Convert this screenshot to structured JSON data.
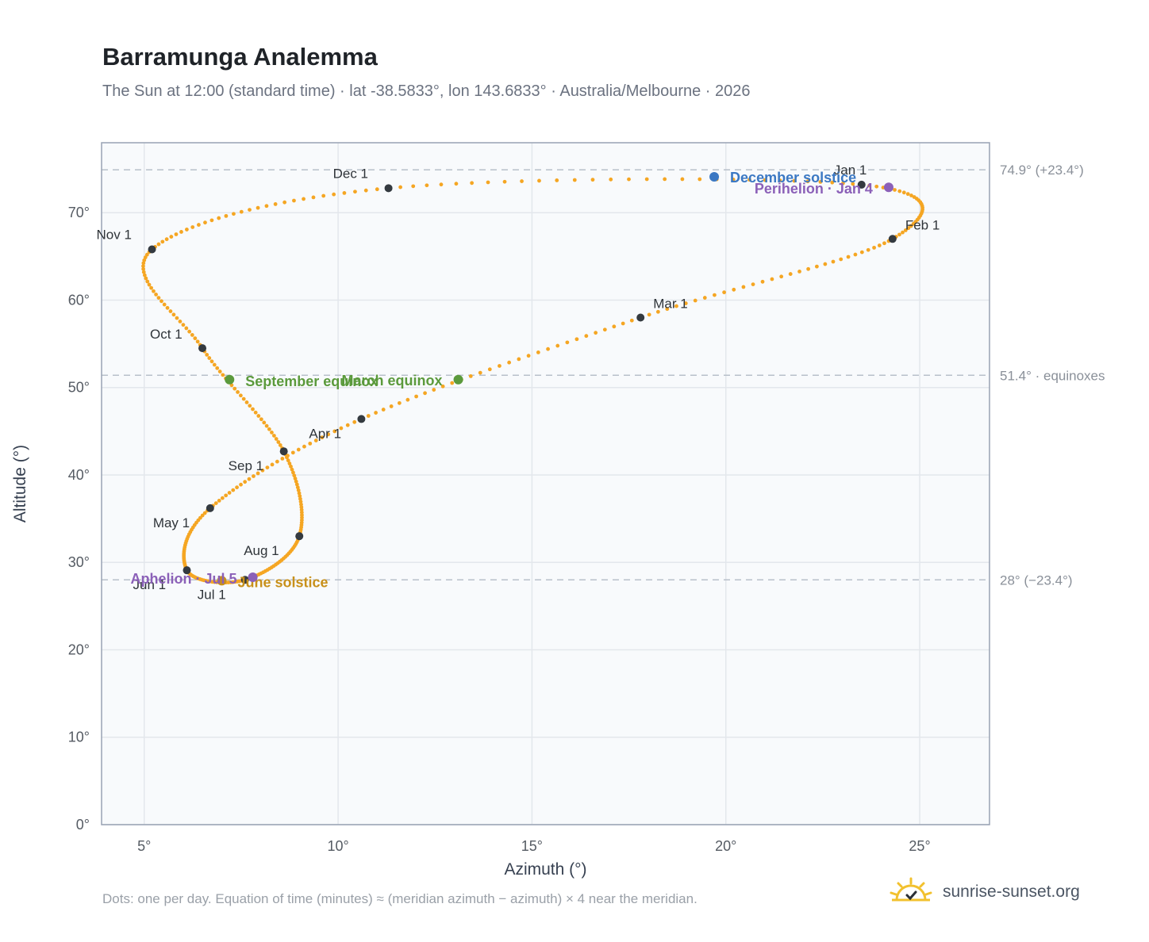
{
  "header": {
    "title": "Barramunga Analemma",
    "subtitle": "The Sun at 12:00 (standard time) · lat -38.5833°, lon 143.6833° · Australia/Melbourne · 2026"
  },
  "footer": {
    "note": "Dots: one per day. Equation of time (minutes) ≈ (meridian azimuth − azimuth) × 4 near the meridian.",
    "brand": "sunrise-sunset.org"
  },
  "chart_data": {
    "type": "scatter",
    "xlabel": "Azimuth (°)",
    "ylabel": "Altitude (°)",
    "xlim": [
      3.9,
      26.8
    ],
    "ylim": [
      0,
      78
    ],
    "xticks": [
      5,
      10,
      15,
      20,
      25
    ],
    "xtick_labels": [
      "5°",
      "10°",
      "15°",
      "20°",
      "25°"
    ],
    "yticks": [
      0,
      10,
      20,
      30,
      40,
      50,
      60,
      70
    ],
    "ytick_labels": [
      "0°",
      "10°",
      "20°",
      "30°",
      "40°",
      "50°",
      "60°",
      "70°"
    ],
    "grid": true,
    "colors": {
      "path": "#f5a623",
      "month": "#343a40",
      "december_solstice": "#3b78c3",
      "june_solstice": "#c8901a",
      "equinox": "#5b9a3c",
      "apsis": "#8b60b8",
      "reference": "#b8c0ca"
    },
    "reference_lines": [
      {
        "y": 74.9,
        "label": "74.9° (+23.4°)"
      },
      {
        "y": 51.4,
        "label": "51.4° · equinoxes"
      },
      {
        "y": 28.0,
        "label": "28° (−23.4°)"
      }
    ],
    "month_points": [
      {
        "label": "Jan 1",
        "x": 23.5,
        "y": 73.2
      },
      {
        "label": "Feb 1",
        "x": 24.3,
        "y": 67.0
      },
      {
        "label": "Mar 1",
        "x": 17.8,
        "y": 58.0
      },
      {
        "label": "Apr 1",
        "x": 10.6,
        "y": 46.4
      },
      {
        "label": "May 1",
        "x": 6.7,
        "y": 36.2
      },
      {
        "label": "Jun 1",
        "x": 6.1,
        "y": 29.1
      },
      {
        "label": "Jul 1",
        "x": 7.6,
        "y": 28.0
      },
      {
        "label": "Aug 1",
        "x": 9.0,
        "y": 33.0
      },
      {
        "label": "Sep 1",
        "x": 8.6,
        "y": 42.7
      },
      {
        "label": "Oct 1",
        "x": 6.5,
        "y": 54.5
      },
      {
        "label": "Nov 1",
        "x": 5.2,
        "y": 65.8
      },
      {
        "label": "Dec 1",
        "x": 11.3,
        "y": 72.8
      }
    ],
    "events": [
      {
        "label": "December solstice",
        "x": 19.7,
        "y": 74.1,
        "kind": "december_solstice"
      },
      {
        "label": "Perihelion · Jan 4",
        "x": 24.2,
        "y": 72.9,
        "kind": "apsis"
      },
      {
        "label": "March equinox",
        "x": 13.1,
        "y": 50.9,
        "kind": "equinox"
      },
      {
        "label": "September equinox",
        "x": 7.2,
        "y": 50.9,
        "kind": "equinox"
      },
      {
        "label": "June solstice",
        "x": 7.0,
        "y": 27.9,
        "kind": "june_solstice"
      },
      {
        "label": "Aphelion · Jul 5",
        "x": 7.8,
        "y": 28.3,
        "kind": "apsis"
      }
    ]
  }
}
